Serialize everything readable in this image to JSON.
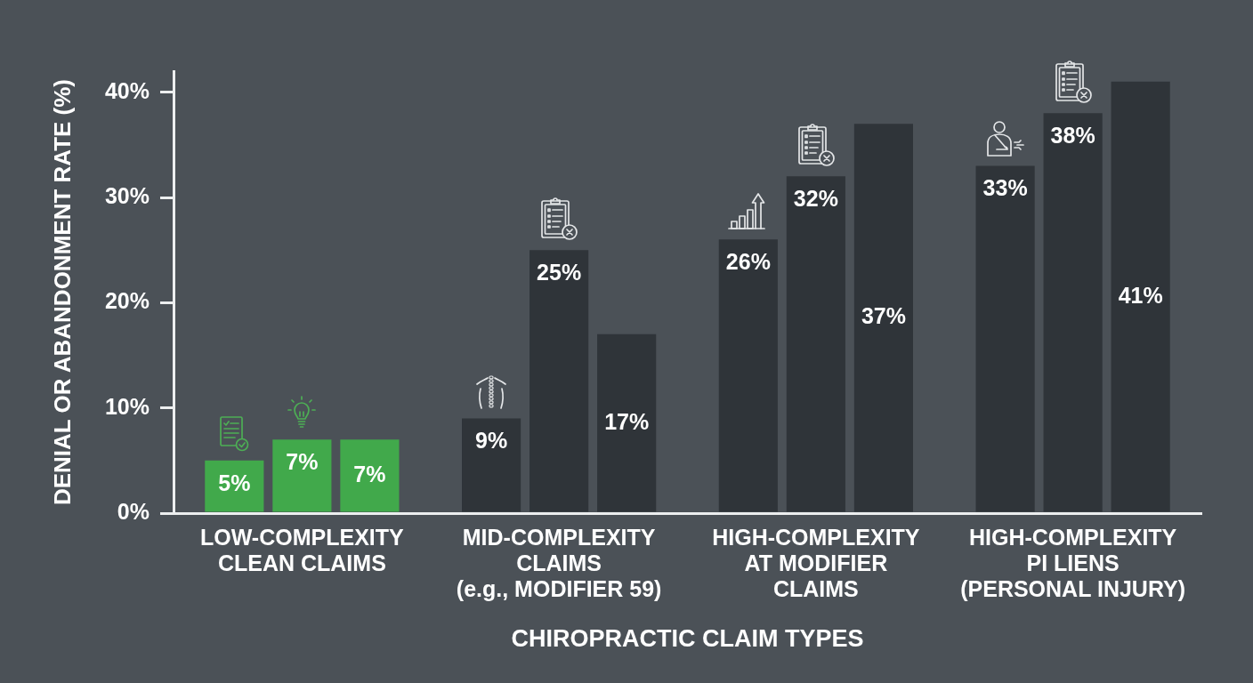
{
  "chart_data": {
    "type": "bar",
    "xlabel": "CHIROPRACTIC CLAIM TYPES",
    "ylabel": "DENIAL OR ABANDONMENT RATE (%)",
    "categories": [
      "LOW-COMPLEXITY\nCLEAN CLAIMS",
      "MID-COMPLEXITY\nCLAIMS\n(e.g., MODIFIER 59)",
      "HIGH-COMPLEXITY\nAT MODIFIER\nCLAIMS",
      "HIGH-COMPLEXITY\nPI LIENS\n(PERSONAL INJURY)"
    ],
    "series": [
      {
        "colors": [
          "#41a94b",
          "#2f3439",
          "#2f3439",
          "#2f3439"
        ],
        "values": [
          5,
          9,
          26,
          33
        ],
        "value_labels": [
          "5%",
          "9%",
          "26%",
          "33%"
        ]
      },
      {
        "colors": [
          "#41a94b",
          "#2f3439",
          "#2f3439",
          "#2f3439"
        ],
        "values": [
          7,
          25,
          32,
          38
        ],
        "value_labels": [
          "7%",
          "25%",
          "32%",
          "38%"
        ]
      },
      {
        "colors": [
          "#41a94b",
          "#2f3439",
          "#2f3439",
          "#2f3439"
        ],
        "values": [
          7,
          17,
          37,
          41
        ],
        "value_labels": [
          "7%",
          "17%",
          "37%",
          "41%"
        ]
      }
    ],
    "ylim": [
      0,
      42
    ],
    "yticks": [
      {
        "value": 0,
        "label": "0%"
      },
      {
        "value": 10,
        "label": "10%"
      },
      {
        "value": 20,
        "label": "20%"
      },
      {
        "value": 30,
        "label": "30%"
      },
      {
        "value": 40,
        "label": "40%"
      }
    ]
  }
}
